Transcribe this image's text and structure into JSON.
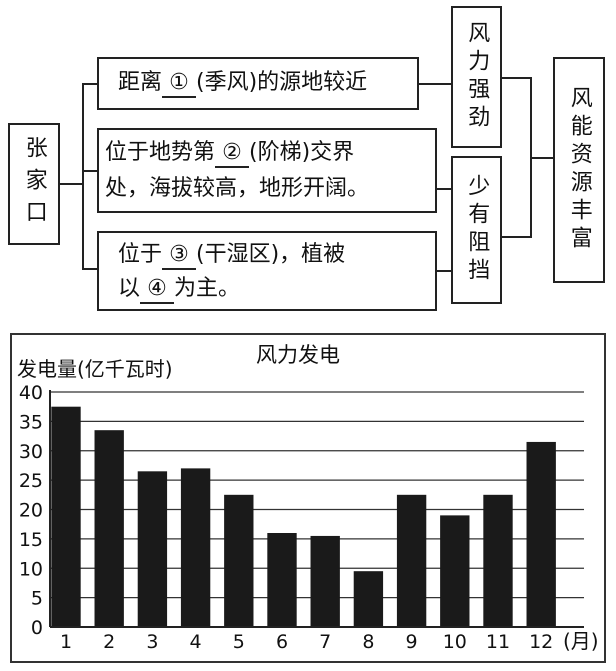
{
  "diagram": {
    "place": "张家口",
    "factor1": {
      "pre": "距离",
      "blank": "①",
      "post": "(季风)的源地较近"
    },
    "factor2": {
      "pre": "位于地势第",
      "blank": "②",
      "post": "(阶梯)交界",
      "line2": "处，海拔较高，地形开阔。"
    },
    "factor3": {
      "pre": "位于",
      "blank": "③",
      "post": "(干湿区)，植被",
      "line2_pre": "以",
      "line2_blank": "④",
      "line2_post": "为主。"
    },
    "result1": "风力强劲",
    "result2": "少有阻挡",
    "conclusion": "风能资源丰富"
  },
  "chart_data": {
    "type": "bar",
    "title": "风力发电",
    "ylabel": "发电量(亿千瓦时)",
    "xlabel": "(月)",
    "categories": [
      "1",
      "2",
      "3",
      "4",
      "5",
      "6",
      "7",
      "8",
      "9",
      "10",
      "11",
      "12"
    ],
    "values": [
      37.5,
      33.5,
      26.5,
      27,
      22.5,
      16,
      15.5,
      9.5,
      22.5,
      19,
      22.5,
      31.5
    ],
    "ylim": [
      0,
      40
    ],
    "yticks": [
      0,
      5,
      10,
      15,
      20,
      25,
      30,
      35,
      40
    ],
    "grid": true
  }
}
